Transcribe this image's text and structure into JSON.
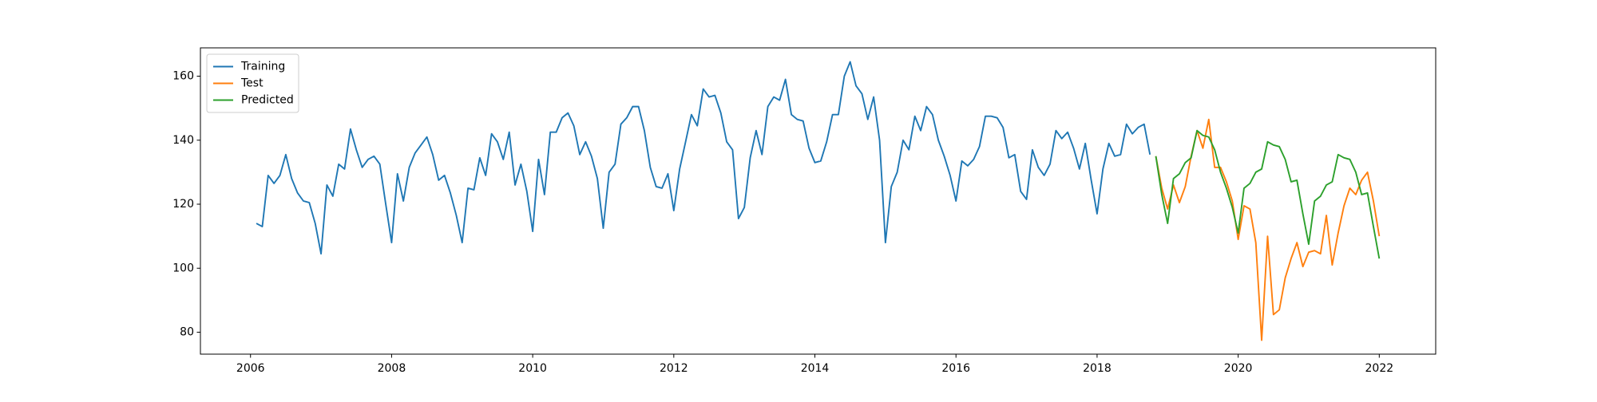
{
  "chart_data": {
    "type": "line",
    "xlim": [
      2005.29,
      2022.8
    ],
    "ylim": [
      73.15,
      168.85
    ],
    "xticks": [
      2006,
      2008,
      2010,
      2012,
      2014,
      2016,
      2018,
      2020,
      2022
    ],
    "yticks": [
      80,
      100,
      120,
      140,
      160
    ],
    "legend": "upper left",
    "series": [
      {
        "name": "Training",
        "color": "#1f77b4",
        "x": [
          2006.083,
          2006.167,
          2006.25,
          2006.333,
          2006.417,
          2006.5,
          2006.583,
          2006.667,
          2006.75,
          2006.833,
          2006.917,
          2007,
          2007.083,
          2007.167,
          2007.25,
          2007.333,
          2007.417,
          2007.5,
          2007.583,
          2007.667,
          2007.75,
          2007.833,
          2007.917,
          2008,
          2008.083,
          2008.167,
          2008.25,
          2008.333,
          2008.417,
          2008.5,
          2008.583,
          2008.667,
          2008.75,
          2008.833,
          2008.917,
          2009,
          2009.083,
          2009.167,
          2009.25,
          2009.333,
          2009.417,
          2009.5,
          2009.583,
          2009.667,
          2009.75,
          2009.833,
          2009.917,
          2010,
          2010.083,
          2010.167,
          2010.25,
          2010.333,
          2010.417,
          2010.5,
          2010.583,
          2010.667,
          2010.75,
          2010.833,
          2010.917,
          2011,
          2011.083,
          2011.167,
          2011.25,
          2011.333,
          2011.417,
          2011.5,
          2011.583,
          2011.667,
          2011.75,
          2011.833,
          2011.917,
          2012,
          2012.083,
          2012.167,
          2012.25,
          2012.333,
          2012.417,
          2012.5,
          2012.583,
          2012.667,
          2012.75,
          2012.833,
          2012.917,
          2013,
          2013.083,
          2013.167,
          2013.25,
          2013.333,
          2013.417,
          2013.5,
          2013.583,
          2013.667,
          2013.75,
          2013.833,
          2013.917,
          2014,
          2014.083,
          2014.167,
          2014.25,
          2014.333,
          2014.417,
          2014.5,
          2014.583,
          2014.667,
          2014.75,
          2014.833,
          2014.917,
          2015,
          2015.083,
          2015.167,
          2015.25,
          2015.333,
          2015.417,
          2015.5,
          2015.583,
          2015.667,
          2015.75,
          2015.833,
          2015.917,
          2016,
          2016.083,
          2016.167,
          2016.25,
          2016.333,
          2016.417,
          2016.5,
          2016.583,
          2016.667,
          2016.75,
          2016.833,
          2016.917,
          2017,
          2017.083,
          2017.167,
          2017.25,
          2017.333,
          2017.417,
          2017.5,
          2017.583,
          2017.667,
          2017.75,
          2017.833,
          2017.917,
          2018,
          2018.083,
          2018.167,
          2018.25,
          2018.333,
          2018.417,
          2018.5,
          2018.583,
          2018.667,
          2018.75
        ],
        "values": [
          114,
          113,
          129,
          126.5,
          129,
          135.5,
          128,
          123.5,
          121,
          120.5,
          114,
          104.5,
          126,
          122.5,
          132.5,
          131,
          143.5,
          137,
          131.5,
          134,
          135,
          132.5,
          120,
          108,
          129.5,
          121,
          131.5,
          136,
          138.5,
          141,
          135.5,
          127.5,
          129,
          123.5,
          116.5,
          108,
          125,
          124.5,
          134.5,
          129,
          142,
          139.5,
          134,
          142.5,
          126,
          132.5,
          124,
          111.5,
          134,
          123,
          142.5,
          142.5,
          147,
          148.5,
          144.5,
          135.5,
          139.5,
          135,
          128,
          112.5,
          130,
          132.5,
          145,
          147,
          150.5,
          150.5,
          143,
          131.5,
          125.5,
          125,
          129.5,
          118,
          131,
          139.5,
          148,
          144.5,
          156,
          153.5,
          154,
          148.5,
          139.5,
          137,
          115.5,
          119,
          134.5,
          143,
          135.5,
          150.5,
          153.5,
          152.5,
          159,
          148,
          146.5,
          146,
          137.5,
          133,
          133.5,
          139.5,
          148,
          148,
          160,
          164.5,
          157,
          154.5,
          146.5,
          153.5,
          140,
          108,
          125.5,
          130,
          140,
          137,
          147.5,
          143,
          150.5,
          148,
          140,
          135,
          129,
          121,
          133.5,
          132,
          134,
          138,
          147.5,
          147.5,
          147,
          144,
          134.5,
          135.5,
          124,
          121.5,
          137,
          131.5,
          129,
          132.5,
          143,
          140.5,
          142.5,
          137.5,
          131,
          139,
          127.5,
          117,
          131,
          139,
          135,
          135.5,
          145,
          142,
          144,
          145,
          135.5
        ]
      },
      {
        "name": "Test",
        "color": "#ff7f0e",
        "x": [
          2018.833,
          2018.917,
          2019,
          2019.083,
          2019.167,
          2019.25,
          2019.333,
          2019.417,
          2019.5,
          2019.583,
          2019.667,
          2019.75,
          2019.833,
          2019.917,
          2020,
          2020.083,
          2020.167,
          2020.25,
          2020.333,
          2020.417,
          2020.5,
          2020.583,
          2020.667,
          2020.75,
          2020.833,
          2020.917,
          2021,
          2021.083,
          2021.167,
          2021.25,
          2021.333,
          2021.417,
          2021.5,
          2021.583,
          2021.667,
          2021.75,
          2021.833,
          2021.917,
          2022
        ],
        "values": [
          135,
          125,
          118.5,
          126,
          120.5,
          125.5,
          135,
          143,
          137.5,
          146.5,
          131.5,
          131.5,
          127,
          121,
          109,
          119.5,
          118.5,
          108,
          77.5,
          110,
          85.5,
          87,
          97,
          103,
          108,
          100.5,
          105,
          105.5,
          104.5,
          116.5,
          101,
          111,
          119.5,
          125,
          123,
          127.5,
          130,
          121,
          110
        ]
      },
      {
        "name": "Predicted",
        "color": "#2ca02c",
        "x": [
          2018.833,
          2018.917,
          2019,
          2019.083,
          2019.167,
          2019.25,
          2019.333,
          2019.417,
          2019.5,
          2019.583,
          2019.667,
          2019.75,
          2019.833,
          2019.917,
          2020,
          2020.083,
          2020.167,
          2020.25,
          2020.333,
          2020.417,
          2020.5,
          2020.583,
          2020.667,
          2020.75,
          2020.833,
          2020.917,
          2021,
          2021.083,
          2021.167,
          2021.25,
          2021.333,
          2021.417,
          2021.5,
          2021.583,
          2021.667,
          2021.75,
          2021.833,
          2021.917,
          2022
        ],
        "values": [
          135,
          123,
          114,
          128,
          129.5,
          133,
          134.5,
          143,
          141.5,
          141,
          137,
          130,
          125,
          119,
          111,
          125,
          126.5,
          130,
          131,
          139.5,
          138.5,
          138,
          134,
          127,
          127.5,
          117,
          107.5,
          121,
          122.5,
          126,
          127,
          135.5,
          134.5,
          134,
          130,
          123,
          123.5,
          113,
          103
        ]
      }
    ]
  }
}
